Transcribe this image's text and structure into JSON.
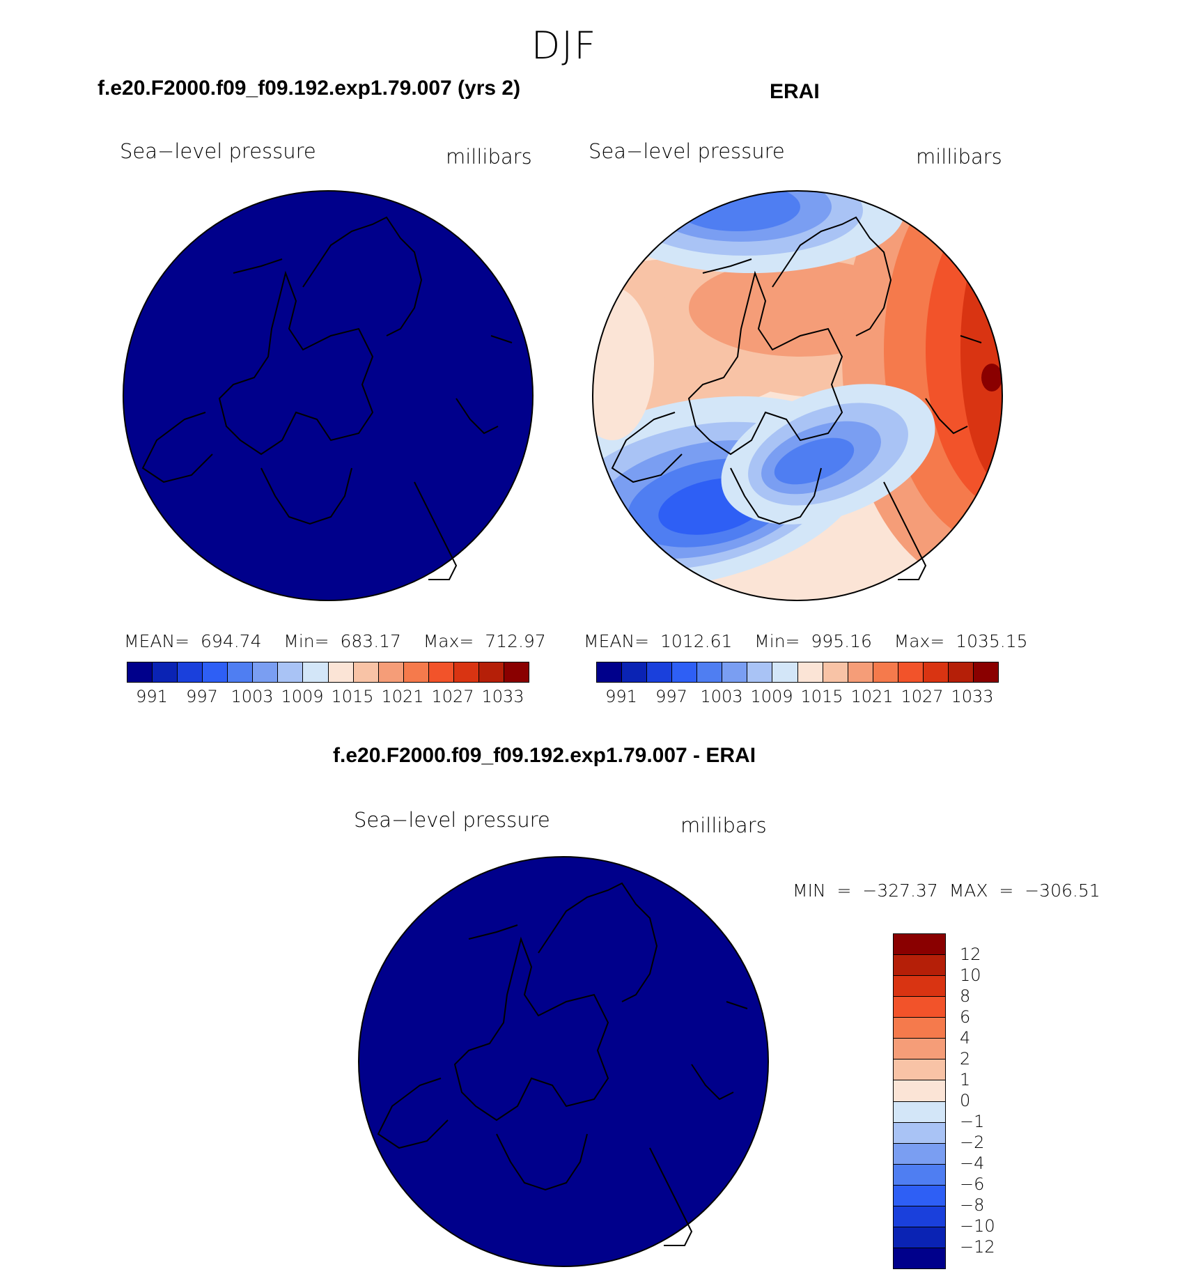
{
  "figure": {
    "season": "DJF"
  },
  "panels": [
    {
      "title": "f.e20.F2000.f09_f09.192.exp1.79.007 (yrs 2)",
      "variable": "Sea−level pressure",
      "units": "millibars",
      "stats": "MEAN=  694.74    Min=  683.17    Max=  712.97"
    },
    {
      "title": "ERAI",
      "variable": "Sea−level pressure",
      "units": "millibars",
      "stats": "MEAN=  1012.61    Min=  995.16    Max=  1035.15"
    },
    {
      "title": "f.e20.F2000.f09_f09.192.exp1.79.007 - ERAI",
      "variable": "Sea−level pressure",
      "units": "millibars",
      "stats": "MIN  =  −327.37  MAX  =  −306.51"
    }
  ],
  "chart_data": [
    {
      "type": "heatmap",
      "title": "f.e20.F2000.f09_f09.192.exp1.79.007 (yrs 2)",
      "projection": "north polar stereographic",
      "field": "Sea-level pressure",
      "units": "millibars",
      "mean": 694.74,
      "min": 683.17,
      "max": 712.97,
      "colorbar_levels": [
        991,
        994,
        997,
        1000,
        1003,
        1006,
        1009,
        1012,
        1015,
        1018,
        1021,
        1024,
        1027,
        1030,
        1033
      ],
      "colorbar_labels": [
        "991",
        "997",
        "1003",
        "1009",
        "1015",
        "1021",
        "1027",
        "1033"
      ],
      "fill": "uniform lowest color (all values below 991)"
    },
    {
      "type": "heatmap",
      "title": "ERAI",
      "projection": "north polar stereographic",
      "field": "Sea-level pressure",
      "units": "millibars",
      "mean": 1012.61,
      "min": 995.16,
      "max": 1035.15,
      "colorbar_levels": [
        991,
        994,
        997,
        1000,
        1003,
        1006,
        1009,
        1012,
        1015,
        1018,
        1021,
        1024,
        1027,
        1030,
        1033
      ],
      "colorbar_labels": [
        "991",
        "997",
        "1003",
        "1009",
        "1015",
        "1021",
        "1027",
        "1033"
      ]
    },
    {
      "type": "heatmap",
      "title": "f.e20.F2000.f09_f09.192.exp1.79.007 - ERAI",
      "projection": "north polar stereographic",
      "field": "Sea-level pressure",
      "units": "millibars",
      "min": -327.37,
      "max": -306.51,
      "colorbar_labels": [
        "12",
        "10",
        "8",
        "6",
        "4",
        "2",
        "1",
        "0",
        "−1",
        "−2",
        "−4",
        "−6",
        "−8",
        "−10",
        "−12"
      ],
      "fill": "uniform lowest color (all values below -12)"
    }
  ],
  "colors": {
    "palette": [
      "#00008b",
      "#0a23b4",
      "#1a40dc",
      "#2e5ff5",
      "#4f7ef2",
      "#7a9ef2",
      "#a9c3f5",
      "#d3e6f8",
      "#fbe4d6",
      "#f8c3a6",
      "#f59d78",
      "#f57a4c",
      "#f2532a",
      "#d93412",
      "#b51f08",
      "#8a0000"
    ],
    "background": "#ffffff",
    "coast": "#000000"
  }
}
